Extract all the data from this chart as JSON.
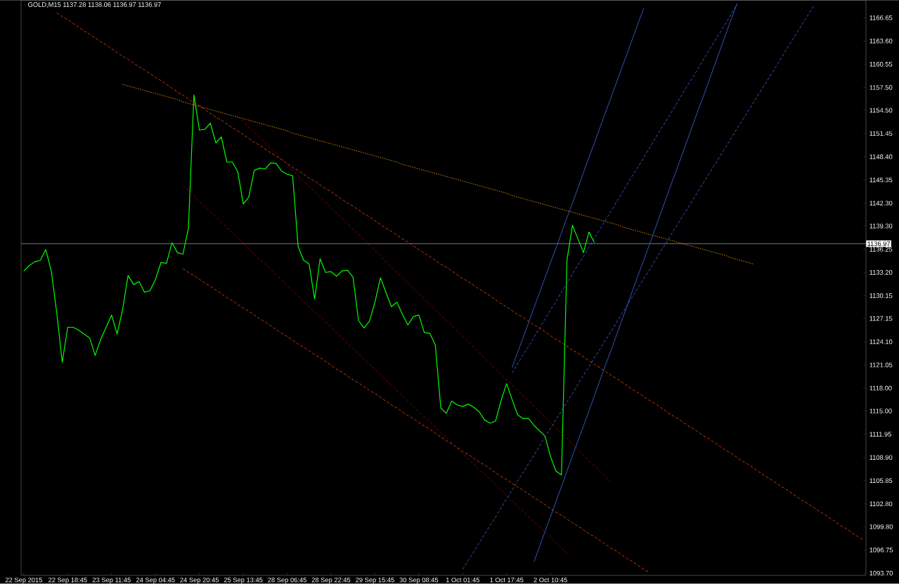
{
  "chart_data": {
    "type": "line",
    "title": "GOLD,M15  1137.28 1138.06 1136.97 1136.97",
    "marker": "none",
    "ylim": [
      1093.43,
      1168.96
    ],
    "categories": [
      "22 Sep 2015",
      null,
      null,
      null,
      null,
      null,
      null,
      null,
      "22 Sep 18:45",
      null,
      null,
      null,
      null,
      null,
      null,
      null,
      "23 Sep 11:45",
      null,
      null,
      null,
      null,
      null,
      null,
      null,
      "24 Sep 04:45",
      null,
      null,
      null,
      null,
      null,
      null,
      null,
      "24 Sep 20:45",
      null,
      null,
      null,
      null,
      null,
      null,
      null,
      "25 Sep 13:45",
      null,
      null,
      null,
      null,
      null,
      null,
      null,
      "28 Sep 06:45",
      null,
      null,
      null,
      null,
      null,
      null,
      null,
      "28 Sep 22:45",
      null,
      null,
      null,
      null,
      null,
      null,
      null,
      "29 Sep 15:45",
      null,
      null,
      null,
      null,
      null,
      null,
      null,
      "30 Sep 08:45",
      null,
      null,
      null,
      null,
      null,
      null,
      null,
      "1 Oct 01:45",
      null,
      null,
      null,
      null,
      null,
      null,
      null,
      "1 Oct 17:45",
      null,
      null,
      null,
      null,
      null,
      null,
      null,
      "2 Oct 10:45",
      null,
      null,
      null,
      null,
      null,
      null,
      null,
      null,
      null,
      null,
      null,
      null,
      null,
      null,
      null,
      null,
      null,
      null,
      null,
      null,
      null,
      null,
      null,
      null,
      null,
      null,
      null,
      null,
      null,
      null,
      null,
      null,
      null,
      null,
      null,
      null,
      null,
      null,
      null,
      null,
      null,
      null,
      null,
      null,
      null,
      null,
      null,
      null,
      null,
      null,
      null,
      null,
      null,
      null,
      null,
      null,
      null
    ],
    "yticks": [
      {
        "value": 1093.7,
        "label": "1093.70"
      },
      {
        "value": 1096.75,
        "label": "1096.75"
      },
      {
        "value": 1099.8,
        "label": "1099.80"
      },
      {
        "value": 1102.8,
        "label": "1102.80"
      },
      {
        "value": 1105.85,
        "label": "1105.85"
      },
      {
        "value": 1108.9,
        "label": "1108.90"
      },
      {
        "value": 1111.95,
        "label": "1111.95"
      },
      {
        "value": 1115.0,
        "label": "1115.00"
      },
      {
        "value": 1118.0,
        "label": "1118.00"
      },
      {
        "value": 1121.05,
        "label": "1121.05"
      },
      {
        "value": 1124.1,
        "label": "1124.10"
      },
      {
        "value": 1127.15,
        "label": "1127.15"
      },
      {
        "value": 1130.15,
        "label": "1130.15"
      },
      {
        "value": 1133.2,
        "label": "1133.20"
      },
      {
        "value": 1136.25,
        "label": "1136.25"
      },
      {
        "value": 1139.3,
        "label": "1139.30"
      },
      {
        "value": 1142.3,
        "label": "1142.30"
      },
      {
        "value": 1145.35,
        "label": "1145.35"
      },
      {
        "value": 1148.4,
        "label": "1148.40"
      },
      {
        "value": 1151.45,
        "label": "1151.45"
      },
      {
        "value": 1154.5,
        "label": "1154.50"
      },
      {
        "value": 1157.5,
        "label": "1157.50"
      },
      {
        "value": 1160.55,
        "label": "1160.55"
      },
      {
        "value": 1163.6,
        "label": "1163.60"
      },
      {
        "value": 1166.65,
        "label": "1166.65"
      }
    ],
    "ref_lines": [
      {
        "axis": "y",
        "value": 1136.97,
        "label": "1136.97",
        "color": "#8496b0"
      }
    ],
    "series": [
      {
        "color": "#00ff00",
        "line_style": "solid",
        "values": [
          1133.4,
          1134.1,
          1134.6,
          1134.8,
          1136.2,
          1133.4,
          1127.9,
          1121.4,
          1126.0,
          1126.0,
          1125.6,
          1125.1,
          1124.6,
          1122.3,
          1124.4,
          1126.0,
          1127.6,
          1125.1,
          1128.3,
          1132.8,
          1131.6,
          1132.0,
          1130.6,
          1130.8,
          1132.3,
          1134.5,
          1134.4,
          1137.1,
          1135.8,
          1135.6,
          1139.0,
          1156.5,
          1151.9,
          1152.0,
          1152.8,
          1150.2,
          1151.0,
          1147.7,
          1147.7,
          1146.4,
          1142.2,
          1143.1,
          1146.6,
          1146.9,
          1146.8,
          1147.6,
          1147.5,
          1146.5,
          1146.1,
          1145.9,
          1136.6,
          1134.8,
          1134.3,
          1129.7,
          1135.0,
          1133.2,
          1133.3,
          1132.7,
          1133.4,
          1133.5,
          1132.6,
          1126.9,
          1125.9,
          1126.8,
          1129.3,
          1132.5,
          1130.6,
          1128.7,
          1129.3,
          1127.7,
          1126.3,
          1127.4,
          1127.6,
          1125.3,
          1125.2,
          1123.7,
          1115.4,
          1114.7,
          1116.3,
          1115.8,
          1115.6,
          1115.9,
          1115.5,
          1114.9,
          1113.8,
          1113.4,
          1113.7,
          1116.4,
          1118.6,
          1116.5,
          1114.5,
          1114.0,
          1114.0,
          1113.1,
          1112.4,
          1111.7,
          1109.0,
          1107.1,
          1106.6,
          1134.8,
          1139.4,
          1137.6,
          1135.8,
          1138.5,
          1137.1,
          null,
          null,
          null,
          null,
          null,
          null,
          null,
          null,
          null,
          null,
          null,
          null,
          null,
          null,
          null,
          null,
          null,
          null,
          null,
          null,
          null,
          null,
          null,
          null,
          null,
          null,
          null,
          null,
          null,
          null,
          null,
          null,
          null,
          null,
          null,
          null,
          null,
          null,
          null,
          null,
          null,
          null,
          null,
          null,
          null,
          null,
          null,
          null,
          null
        ]
      },
      {
        "type": "line",
        "color": "#ffa500",
        "line_style": "dotted",
        "values": [
          null,
          null,
          null,
          null,
          null,
          null,
          null,
          null,
          null,
          null,
          null,
          null,
          null,
          null,
          null,
          null,
          null,
          null,
          1157.9,
          1157.7,
          1157.5,
          1157.3,
          1157.1,
          1156.9,
          1156.7,
          1156.5,
          1156.3,
          1156.1,
          1155.9,
          1155.6,
          1155.4,
          1155.2,
          1155.0,
          1154.8,
          1154.6,
          1154.4,
          1154.2,
          1154.0,
          1153.8,
          1153.6,
          1153.4,
          1153.2,
          1153.0,
          1152.8,
          1152.6,
          1152.4,
          1152.2,
          1152.0,
          1151.8,
          1151.5,
          1151.3,
          1151.1,
          1150.9,
          1150.7,
          1150.5,
          1150.3,
          1150.1,
          1149.9,
          1149.7,
          1149.5,
          1149.3,
          1149.1,
          1148.9,
          1148.7,
          1148.5,
          1148.3,
          1148.1,
          1147.9,
          1147.7,
          1147.4,
          1147.2,
          1147.0,
          1146.8,
          1146.6,
          1146.4,
          1146.2,
          1146.0,
          1145.8,
          1145.6,
          1145.4,
          1145.2,
          1145.0,
          1144.8,
          1144.6,
          1144.4,
          1144.2,
          1144.0,
          1143.8,
          1143.6,
          1143.3,
          1143.1,
          1142.9,
          1142.7,
          1142.5,
          1142.3,
          1142.1,
          1141.9,
          1141.7,
          1141.5,
          1141.3,
          1141.1,
          1140.9,
          1140.7,
          1140.5,
          1140.3,
          1140.1,
          1139.9,
          1139.7,
          1139.5,
          1139.2,
          1139.0,
          1138.8,
          1138.6,
          1138.4,
          1138.2,
          1138.0,
          1137.8,
          1137.6,
          1137.4,
          1137.2,
          1137.0,
          1136.8,
          1136.6,
          1136.4,
          1136.2,
          1136.0,
          1135.8,
          1135.6,
          1135.4,
          1135.1,
          1134.9,
          1134.7,
          1134.5,
          1134.3,
          null,
          null,
          null,
          null,
          null,
          null,
          null,
          null,
          null,
          null,
          null,
          null,
          null,
          null,
          null,
          null,
          null,
          null,
          null,
          null
        ]
      },
      {
        "type": "line",
        "color": "#ff4500",
        "line_style": "dashed",
        "values": [
          null,
          null,
          null,
          null,
          null,
          null,
          1167.3,
          1166.8,
          1166.4,
          1165.9,
          1165.4,
          1164.9,
          1164.5,
          1164.0,
          1163.5,
          1163.1,
          1162.6,
          1162.1,
          1161.6,
          1161.2,
          1160.7,
          1160.2,
          1159.8,
          1159.3,
          1158.8,
          1158.4,
          1157.9,
          1157.4,
          1156.9,
          1156.5,
          1156.0,
          1155.5,
          1155.1,
          1154.6,
          1154.1,
          1153.6,
          1153.2,
          1152.7,
          1152.2,
          1151.8,
          1151.3,
          1150.8,
          1150.3,
          1149.9,
          1149.4,
          1148.9,
          1148.5,
          1148.0,
          1147.5,
          1147.0,
          1146.6,
          1146.1,
          1145.6,
          1145.2,
          1144.7,
          1144.2,
          1143.8,
          1143.3,
          1142.8,
          1142.3,
          1141.9,
          1141.4,
          1140.9,
          1140.5,
          1140.0,
          1139.5,
          1139.0,
          1138.6,
          1138.1,
          1137.6,
          1137.2,
          1136.7,
          1136.2,
          1135.7,
          1135.3,
          1134.8,
          1134.3,
          1133.9,
          1133.4,
          1132.9,
          1132.4,
          1132.0,
          1131.5,
          1131.0,
          1130.6,
          1130.1,
          1129.6,
          1129.1,
          1128.7,
          1128.2,
          1127.7,
          1127.3,
          1126.8,
          1126.3,
          1125.9,
          1125.4,
          1124.9,
          1124.4,
          1124.0,
          1123.5,
          1123.0,
          1122.6,
          1122.1,
          1121.6,
          1121.1,
          1120.7,
          1120.2,
          1119.7,
          1119.3,
          1118.8,
          1118.3,
          1117.8,
          1117.4,
          1116.9,
          1116.4,
          1116.0,
          1115.5,
          1115.0,
          1114.5,
          1114.1,
          1113.6,
          1113.1,
          1112.7,
          1112.2,
          1111.7,
          1111.3,
          1110.8,
          1110.3,
          1109.8,
          1109.4,
          1108.9,
          1108.4,
          1108.0,
          1107.5,
          1107.0,
          1106.5,
          1106.1,
          1105.6,
          1105.1,
          1104.7,
          1104.2,
          1103.7,
          1103.2,
          1102.8,
          1102.3,
          1101.8,
          1101.4,
          1100.9,
          1100.4,
          1099.9,
          1099.5,
          1099.0,
          1098.5,
          1098.1
        ]
      },
      {
        "type": "line",
        "color": "#ff4500",
        "line_style": "dashed",
        "values": [
          null,
          null,
          null,
          null,
          null,
          null,
          null,
          null,
          null,
          null,
          null,
          null,
          null,
          null,
          null,
          null,
          null,
          null,
          null,
          null,
          null,
          null,
          null,
          null,
          null,
          null,
          null,
          null,
          null,
          1133.7,
          1133.2,
          1132.8,
          1132.3,
          1131.8,
          1131.4,
          1130.9,
          1130.4,
          1129.9,
          1129.5,
          1129.0,
          1128.5,
          1128.1,
          1127.6,
          1127.1,
          1126.7,
          1126.2,
          1125.7,
          1125.2,
          1124.8,
          1124.3,
          1123.8,
          1123.4,
          1122.9,
          1122.4,
          1122.0,
          1121.5,
          1121.0,
          1120.5,
          1120.1,
          1119.6,
          1119.1,
          1118.7,
          1118.2,
          1117.7,
          1117.3,
          1116.8,
          1116.3,
          1115.8,
          1115.4,
          1114.9,
          1114.4,
          1114.0,
          1113.5,
          1113.0,
          1112.6,
          1112.1,
          1111.6,
          1111.1,
          1110.7,
          1110.2,
          1109.7,
          1109.3,
          1108.8,
          1108.3,
          1107.9,
          1107.4,
          1106.9,
          1106.4,
          1106.0,
          1105.5,
          1105.0,
          1104.6,
          1104.1,
          1103.6,
          1103.2,
          1102.7,
          1102.2,
          1101.7,
          1101.3,
          1100.8,
          1100.3,
          1099.9,
          1099.4,
          1098.9,
          1098.5,
          1098.0,
          1097.5,
          1097.0,
          1096.6,
          1096.1,
          1095.6,
          1095.2,
          1094.7,
          1094.2,
          1093.8,
          null,
          null,
          null,
          null,
          null,
          null,
          null,
          null,
          null,
          null,
          null,
          null,
          null,
          null,
          null,
          null,
          null,
          null,
          null,
          null,
          null,
          null,
          null,
          null,
          null,
          null,
          null,
          null,
          null,
          null,
          null,
          null,
          null,
          null,
          null,
          null,
          null,
          null,
          null
        ]
      },
      {
        "type": "line",
        "color": "#a00000",
        "line_style": "dashed",
        "values": [
          null,
          null,
          null,
          null,
          null,
          null,
          null,
          null,
          null,
          null,
          null,
          null,
          null,
          null,
          null,
          null,
          null,
          null,
          null,
          null,
          null,
          null,
          null,
          null,
          null,
          null,
          null,
          null,
          null,
          1144.6,
          1143.9,
          1143.2,
          1142.5,
          1141.8,
          1141.2,
          1140.5,
          1139.8,
          1139.1,
          1138.4,
          1137.7,
          1137.0,
          1136.3,
          1135.6,
          1134.9,
          1134.3,
          1133.6,
          1132.9,
          1132.2,
          1131.5,
          1130.8,
          1130.1,
          1129.4,
          1128.7,
          1128.0,
          1127.4,
          1126.7,
          1126.0,
          1125.3,
          1124.6,
          1123.9,
          1123.2,
          1122.5,
          1121.8,
          1121.1,
          1120.5,
          1119.8,
          1119.1,
          1118.4,
          1117.7,
          1117.0,
          1116.3,
          1115.6,
          1114.9,
          1114.2,
          1113.6,
          1112.9,
          1112.2,
          1111.5,
          1110.8,
          1110.1,
          1109.4,
          1108.7,
          1108.0,
          1107.3,
          1106.7,
          1106.0,
          1105.3,
          1104.6,
          1103.9,
          1103.2,
          1102.5,
          1101.8,
          1101.1,
          1100.4,
          1099.8,
          1099.1,
          1098.4,
          1097.7,
          1097.0,
          1096.3,
          null,
          null,
          null,
          null,
          null,
          null,
          null,
          null,
          null,
          null,
          null,
          null,
          null,
          null,
          null,
          null,
          null,
          null,
          null,
          null,
          null,
          null,
          null,
          null,
          null,
          null,
          null,
          null,
          null,
          null,
          null,
          null,
          null,
          null,
          null,
          null,
          null,
          null,
          null,
          null,
          null,
          null,
          null,
          null,
          null,
          null,
          null,
          null,
          null,
          null,
          null,
          null,
          null,
          null
        ]
      },
      {
        "type": "line",
        "color": "#a00000",
        "line_style": "dashed",
        "values": [
          null,
          null,
          null,
          null,
          null,
          null,
          null,
          null,
          null,
          null,
          null,
          null,
          null,
          null,
          null,
          null,
          null,
          null,
          null,
          null,
          null,
          null,
          null,
          null,
          null,
          null,
          null,
          null,
          null,
          null,
          null,
          null,
          null,
          null,
          null,
          null,
          null,
          null,
          null,
          1153.7,
          1153.0,
          1152.3,
          1151.6,
          1150.9,
          1150.2,
          1149.5,
          1148.8,
          1148.1,
          1147.4,
          1146.6,
          1145.9,
          1145.2,
          1144.5,
          1143.8,
          1143.1,
          1142.4,
          1141.7,
          1141.0,
          1140.3,
          1139.6,
          1138.9,
          1138.2,
          1137.5,
          1136.8,
          1136.1,
          1135.4,
          1134.6,
          1133.9,
          1133.2,
          1132.5,
          1131.8,
          1131.1,
          1130.4,
          1129.7,
          1129.0,
          1128.3,
          1127.6,
          1126.9,
          1126.2,
          1125.5,
          1124.8,
          1124.1,
          1123.4,
          1122.7,
          1121.9,
          1121.2,
          1120.5,
          1119.8,
          1119.1,
          1118.4,
          1117.7,
          1117.0,
          1116.3,
          1115.6,
          1114.9,
          1114.2,
          1113.5,
          1112.8,
          1112.1,
          1111.4,
          1110.7,
          1110.0,
          1109.2,
          1108.5,
          1107.8,
          1107.1,
          1106.4,
          1105.7,
          null,
          null,
          null,
          null,
          null,
          null,
          null,
          null,
          null,
          null,
          null,
          null,
          null,
          null,
          null,
          null,
          null,
          null,
          null,
          null,
          null,
          null,
          null,
          null,
          null,
          null,
          null,
          null,
          null,
          null,
          null,
          null,
          null,
          null,
          null,
          null,
          null,
          null,
          null,
          null,
          null,
          null,
          null,
          null,
          null,
          null
        ]
      },
      {
        "type": "line",
        "color": "#4169e1",
        "line_style": "solid",
        "values": [
          null,
          null,
          null,
          null,
          null,
          null,
          null,
          null,
          null,
          null,
          null,
          null,
          null,
          null,
          null,
          null,
          null,
          null,
          null,
          null,
          null,
          null,
          null,
          null,
          null,
          null,
          null,
          null,
          null,
          null,
          null,
          null,
          null,
          null,
          null,
          null,
          null,
          null,
          null,
          null,
          null,
          null,
          null,
          null,
          null,
          null,
          null,
          null,
          null,
          null,
          null,
          null,
          null,
          null,
          null,
          null,
          null,
          null,
          null,
          null,
          null,
          null,
          null,
          null,
          null,
          null,
          null,
          null,
          null,
          null,
          null,
          null,
          null,
          null,
          null,
          null,
          null,
          null,
          null,
          null,
          null,
          null,
          null,
          null,
          null,
          null,
          null,
          null,
          null,
          1120.7,
          1122.7,
          1124.6,
          1126.6,
          1128.6,
          1130.5,
          1132.5,
          1134.5,
          1136.4,
          1138.4,
          1140.4,
          1142.3,
          1144.3,
          1146.3,
          1148.3,
          1150.2,
          1152.2,
          1154.2,
          1156.1,
          1158.1,
          1160.1,
          1162.0,
          1164.0,
          1166.0,
          1167.9,
          null,
          null,
          null,
          null,
          null,
          null,
          null,
          null,
          null,
          null,
          null,
          null,
          null,
          null,
          null,
          null,
          null,
          null,
          null,
          null,
          null,
          null,
          null,
          null,
          null,
          null,
          null,
          null,
          null,
          null,
          null,
          null,
          null,
          null,
          null,
          null,
          null,
          null,
          null,
          null
        ]
      },
      {
        "type": "line",
        "color": "#4169e1",
        "line_style": "solid",
        "values": [
          null,
          null,
          null,
          null,
          null,
          null,
          null,
          null,
          null,
          null,
          null,
          null,
          null,
          null,
          null,
          null,
          null,
          null,
          null,
          null,
          null,
          null,
          null,
          null,
          null,
          null,
          null,
          null,
          null,
          null,
          null,
          null,
          null,
          null,
          null,
          null,
          null,
          null,
          null,
          null,
          null,
          null,
          null,
          null,
          null,
          null,
          null,
          null,
          null,
          null,
          null,
          null,
          null,
          null,
          null,
          null,
          null,
          null,
          null,
          null,
          null,
          null,
          null,
          null,
          null,
          null,
          null,
          null,
          null,
          null,
          null,
          null,
          null,
          null,
          null,
          null,
          null,
          null,
          null,
          null,
          null,
          null,
          null,
          null,
          null,
          null,
          null,
          null,
          null,
          null,
          null,
          null,
          null,
          1095.2,
          1097.2,
          1099.2,
          1101.1,
          1103.1,
          1105.1,
          1107.1,
          1109.1,
          1111.1,
          1113.0,
          1115.0,
          1117.0,
          1119.0,
          1121.0,
          1122.9,
          1124.9,
          1126.9,
          1128.9,
          1130.9,
          1132.9,
          1134.8,
          1136.8,
          1138.8,
          1140.8,
          1142.8,
          1144.8,
          1146.7,
          1148.7,
          1150.7,
          1152.7,
          1154.7,
          1156.6,
          1158.6,
          1160.6,
          1162.6,
          1164.6,
          1166.6,
          1168.5,
          null,
          null,
          null,
          null,
          null,
          null,
          null,
          null,
          null,
          null,
          null,
          null,
          null,
          null,
          null,
          null,
          null,
          null,
          null,
          null,
          null,
          null,
          null
        ]
      },
      {
        "type": "line",
        "color": "#4169e1",
        "line_style": "dashed",
        "values": [
          null,
          null,
          null,
          null,
          null,
          null,
          null,
          null,
          null,
          null,
          null,
          null,
          null,
          null,
          null,
          null,
          null,
          null,
          null,
          null,
          null,
          null,
          null,
          null,
          null,
          null,
          null,
          null,
          null,
          null,
          null,
          null,
          null,
          null,
          null,
          null,
          null,
          null,
          null,
          null,
          null,
          null,
          null,
          null,
          null,
          null,
          null,
          null,
          null,
          null,
          null,
          null,
          null,
          null,
          null,
          null,
          null,
          null,
          null,
          null,
          null,
          null,
          null,
          null,
          null,
          null,
          null,
          null,
          null,
          null,
          null,
          null,
          null,
          null,
          null,
          null,
          null,
          null,
          null,
          null,
          null,
          null,
          null,
          null,
          null,
          null,
          null,
          null,
          null,
          1120.0,
          1121.2,
          1122.4,
          1123.5,
          1124.7,
          1125.9,
          1127.1,
          1128.3,
          1129.4,
          1130.6,
          1131.8,
          1133.0,
          1134.2,
          1135.3,
          1136.5,
          1137.7,
          1138.9,
          1140.1,
          1141.2,
          1142.4,
          1143.6,
          1144.8,
          1146.0,
          1147.1,
          1148.3,
          1149.5,
          1150.7,
          1151.9,
          1153.0,
          1154.2,
          1155.4,
          1156.6,
          1157.8,
          1158.9,
          1160.1,
          1161.3,
          1162.5,
          1163.7,
          1164.8,
          1166.0,
          1167.2,
          1168.4,
          null,
          null,
          null,
          null,
          null,
          null,
          null,
          null,
          null,
          null,
          null,
          null,
          null,
          null,
          null,
          null,
          null,
          null,
          null,
          null,
          null,
          null,
          null
        ]
      },
      {
        "type": "line",
        "color": "#4169e1",
        "line_style": "dashed",
        "values": [
          null,
          null,
          null,
          null,
          null,
          null,
          null,
          null,
          null,
          null,
          null,
          null,
          null,
          null,
          null,
          null,
          null,
          null,
          null,
          null,
          null,
          null,
          null,
          null,
          null,
          null,
          null,
          null,
          null,
          null,
          null,
          null,
          null,
          null,
          null,
          null,
          null,
          null,
          null,
          null,
          null,
          null,
          null,
          null,
          null,
          null,
          null,
          null,
          null,
          null,
          null,
          null,
          null,
          null,
          null,
          null,
          null,
          null,
          null,
          null,
          null,
          null,
          null,
          null,
          null,
          null,
          null,
          null,
          null,
          null,
          null,
          null,
          null,
          null,
          null,
          null,
          null,
          null,
          null,
          null,
          1094.2,
          1095.4,
          1096.5,
          1097.7,
          1098.8,
          1100.0,
          1101.1,
          1102.3,
          1103.5,
          1104.6,
          1105.8,
          1106.9,
          1108.1,
          1109.2,
          1110.4,
          1111.6,
          1112.7,
          1113.9,
          1115.0,
          1116.2,
          1117.3,
          1118.5,
          1119.7,
          1120.8,
          1122.0,
          1123.1,
          1124.3,
          1125.4,
          1126.6,
          1127.8,
          1128.9,
          1130.1,
          1131.2,
          1132.4,
          1133.5,
          1134.7,
          1135.9,
          1137.0,
          1138.2,
          1139.3,
          1140.5,
          1141.6,
          1142.8,
          1144.0,
          1145.1,
          1146.3,
          1147.4,
          1148.6,
          1149.7,
          1150.9,
          1152.1,
          1153.2,
          1154.4,
          1155.5,
          1156.7,
          1157.8,
          1159.0,
          1160.1,
          1161.3,
          1162.5,
          1163.6,
          1164.8,
          1165.9,
          1167.1,
          1168.2,
          null,
          null,
          null,
          null,
          null,
          null,
          null,
          null,
          null
        ]
      }
    ]
  }
}
